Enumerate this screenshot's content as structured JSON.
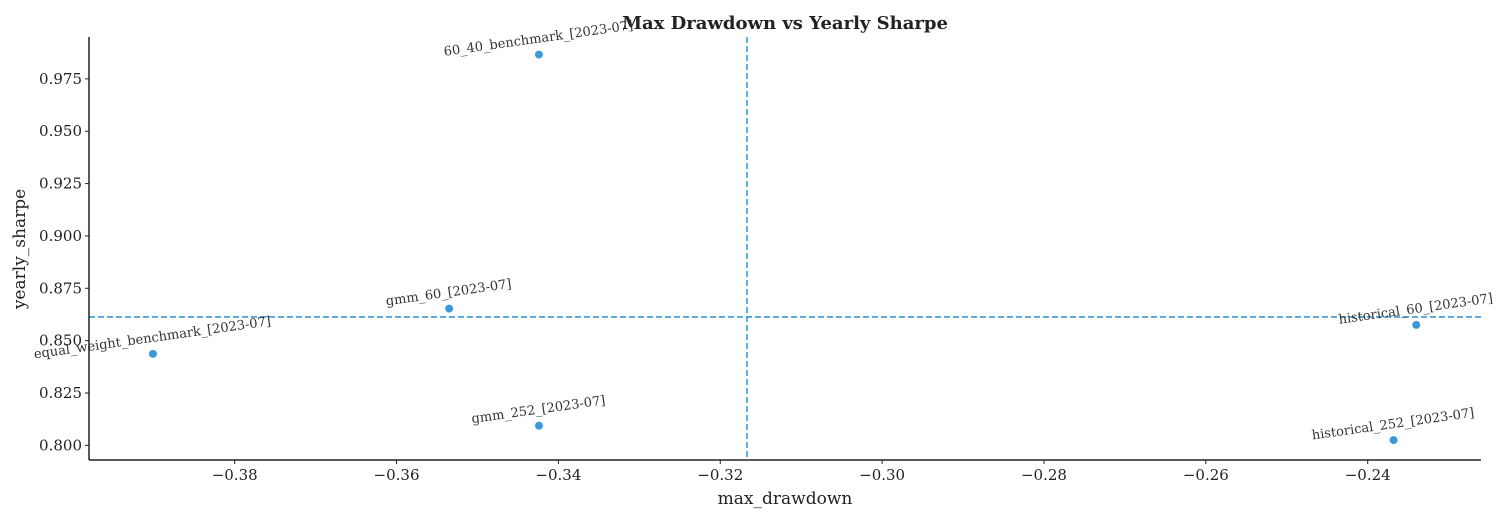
{
  "chart_data": {
    "type": "scatter",
    "title": "Max Drawdown vs Yearly Sharpe",
    "xlabel": "max_drawdown",
    "ylabel": "yearly_sharpe",
    "xlim": [
      -0.398,
      -0.226
    ],
    "ylim": [
      0.793,
      0.995
    ],
    "xticks": [
      -0.38,
      -0.36,
      -0.34,
      -0.32,
      -0.3,
      -0.28,
      -0.26,
      -0.24
    ],
    "xtick_labels": [
      "−0.38",
      "−0.36",
      "−0.34",
      "−0.32",
      "−0.30",
      "−0.28",
      "−0.26",
      "−0.24"
    ],
    "yticks": [
      0.8,
      0.825,
      0.85,
      0.875,
      0.9,
      0.925,
      0.95,
      0.975
    ],
    "ytick_labels": [
      "0.800",
      "0.825",
      "0.850",
      "0.875",
      "0.900",
      "0.925",
      "0.950",
      "0.975"
    ],
    "grid": false,
    "point_color": "#3a9ad9",
    "reference_color": "#3a9ad9",
    "reference_lines": {
      "x": -0.3167,
      "y": 0.8613
    },
    "points": [
      {
        "label": "60_40_benchmark_[2023-07]",
        "x": -0.3424,
        "y": 0.9866
      },
      {
        "label": "gmm_60_[2023-07]",
        "x": -0.3535,
        "y": 0.8653
      },
      {
        "label": "equal_weight_benchmark_[2023-07]",
        "x": -0.3901,
        "y": 0.8437
      },
      {
        "label": "gmm_252_[2023-07]",
        "x": -0.3424,
        "y": 0.8094
      },
      {
        "label": "historical_60_[2023-07]",
        "x": -0.234,
        "y": 0.8575
      },
      {
        "label": "historical_252_[2023-07]",
        "x": -0.2368,
        "y": 0.8025
      }
    ]
  }
}
